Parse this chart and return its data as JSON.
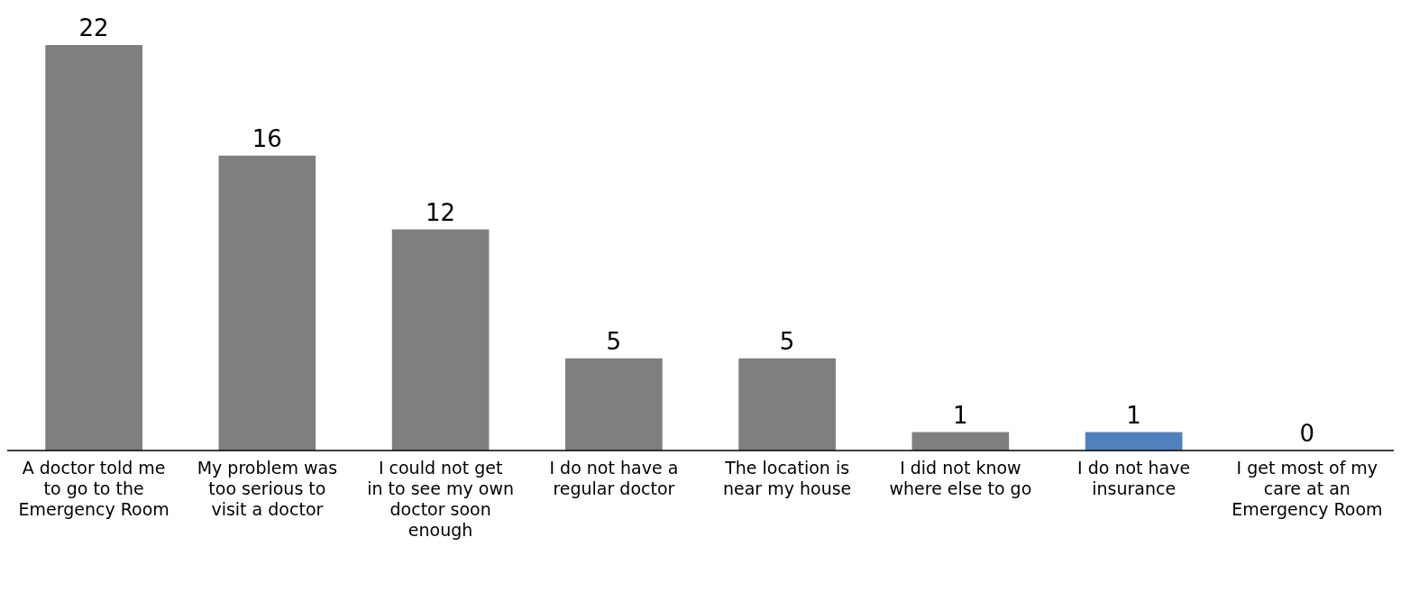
{
  "chart_data": {
    "type": "bar",
    "categories": [
      "A doctor told me to go to the Emergency Room",
      "My problem was too serious to visit a doctor",
      "I could not get in to see my own doctor soon enough",
      "I do not have a regular doctor",
      "The location is near my house",
      "I did not know where else to go",
      "I do not have insurance",
      "I get most of my care at an Emergency Room"
    ],
    "values": [
      22,
      16,
      12,
      5,
      5,
      1,
      1,
      0
    ],
    "colors": [
      "#7f7f7f",
      "#7f7f7f",
      "#7f7f7f",
      "#7f7f7f",
      "#7f7f7f",
      "#7f7f7f",
      "#4f81bd",
      "#7f7f7f"
    ],
    "data_labels": true
  }
}
